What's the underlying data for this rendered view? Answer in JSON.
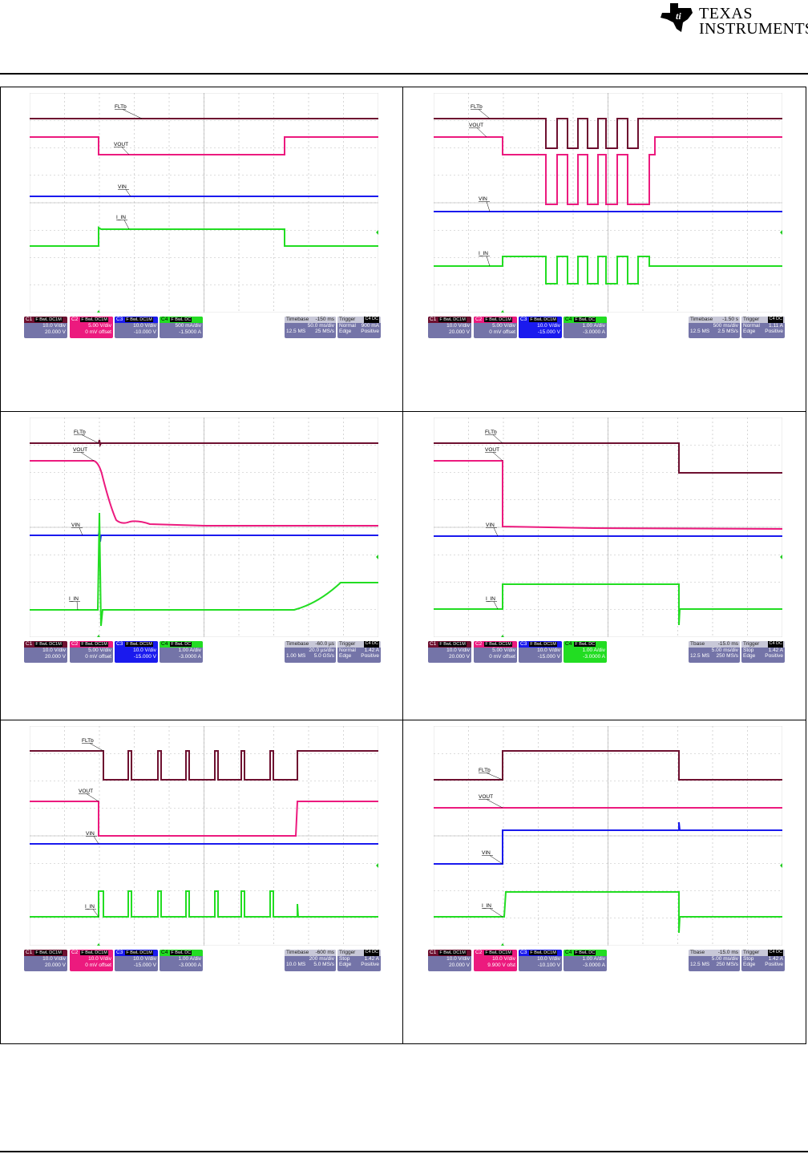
{
  "header": {
    "brand_line1": "TEXAS",
    "brand_line2": "INSTRUMENTS"
  },
  "colors": {
    "c1": "#6e1030",
    "c2": "#ec1a7e",
    "c3": "#1a1aee",
    "c4": "#22dd22",
    "box": "#7474a8"
  },
  "panels": [
    {
      "labels": {
        "fltb": "FLTb",
        "vout": "VOUT",
        "vin": "VIN",
        "iin": "I_IN"
      },
      "channels": [
        {
          "name": "C1",
          "flags": "F BwL DC1M",
          "vdiv": "10.0 V/div",
          "offset": "20.000 V",
          "selected": false
        },
        {
          "name": "C2",
          "flags": "F BwL DC1M",
          "vdiv": "5.00 V/div",
          "offset": "0 mV offset",
          "selected": true
        },
        {
          "name": "C3",
          "flags": "F BwL DC1M",
          "vdiv": "10.0 V/div",
          "offset": "-10.000 V",
          "selected": false
        },
        {
          "name": "C4",
          "flags": "F BwL DC",
          "vdiv": "500 mA/div",
          "offset": "-1.5000 A",
          "selected": false
        }
      ],
      "timebase": {
        "label": "Timebase",
        "delay": "-150 ms",
        "div": "50.0 ms/div",
        "samples": "12.5 MS",
        "rate": "25 MS/s"
      },
      "trigger": {
        "label": "Trigger",
        "src": "C4 DC",
        "mode": "Normal",
        "level": "900 mA",
        "type": "Edge",
        "slope": "Positive"
      }
    },
    {
      "labels": {
        "fltb": "FLTb",
        "vout": "VOUT",
        "vin": "VIN",
        "iin": "I_IN"
      },
      "channels": [
        {
          "name": "C1",
          "flags": "F BwL DC1M",
          "vdiv": "10.0 V/div",
          "offset": "20.000 V",
          "selected": false
        },
        {
          "name": "C2",
          "flags": "F BwL DC1M",
          "vdiv": "5.00 V/div",
          "offset": "0 mV offset",
          "selected": false
        },
        {
          "name": "C3",
          "flags": "F BwL DC1M",
          "vdiv": "10.0 V/div",
          "offset": "-15.000 V",
          "selected": true
        },
        {
          "name": "C4",
          "flags": "F BwL DC",
          "vdiv": "1.00 A/div",
          "offset": "-3.0000 A",
          "selected": false
        }
      ],
      "timebase": {
        "label": "Timebase",
        "delay": "-1.50 s",
        "div": "500 ms/div",
        "samples": "12.5 MS",
        "rate": "2.5 MS/s"
      },
      "trigger": {
        "label": "Trigger",
        "src": "C4 DC",
        "mode": "Normal",
        "level": "1.11 A",
        "type": "Edge",
        "slope": "Positive"
      }
    },
    {
      "labels": {
        "fltb": "FLTb",
        "vout": "VOUT",
        "vin": "VIN",
        "iin": "I_IN"
      },
      "channels": [
        {
          "name": "C1",
          "flags": "F BwL DC1M",
          "vdiv": "10.0 V/div",
          "offset": "20.000 V",
          "selected": false
        },
        {
          "name": "C2",
          "flags": "F BwL DC1M",
          "vdiv": "5.00 V/div",
          "offset": "0 mV offset",
          "selected": false
        },
        {
          "name": "C3",
          "flags": "F BwL DC1M",
          "vdiv": "10.0 V/div",
          "offset": "-15.000 V",
          "selected": true
        },
        {
          "name": "C4",
          "flags": "F BwL DC",
          "vdiv": "1.00 A/div",
          "offset": "-3.0000 A",
          "selected": false
        }
      ],
      "timebase": {
        "label": "Timebase",
        "delay": "-60.0 µs",
        "div": "20.0 µs/div",
        "samples": "1.00 MS",
        "rate": "5.0 GS/s"
      },
      "trigger": {
        "label": "Trigger",
        "src": "C4 DC",
        "mode": "Normal",
        "level": "1.42 A",
        "type": "Edge",
        "slope": "Positive"
      }
    },
    {
      "labels": {
        "fltb": "FLTb",
        "vout": "VOUT",
        "vin": "VIN",
        "iin": "I_IN"
      },
      "channels": [
        {
          "name": "C1",
          "flags": "F BwL DC1M",
          "vdiv": "10.0 V/div",
          "offset": "20.000 V",
          "selected": false
        },
        {
          "name": "C2",
          "flags": "F BwL DC1M",
          "vdiv": "5.00 V/div",
          "offset": "0 mV offset",
          "selected": false
        },
        {
          "name": "C3",
          "flags": "F BwL DC1M",
          "vdiv": "10.0 V/div",
          "offset": "-15.000 V",
          "selected": false
        },
        {
          "name": "C4",
          "flags": "F BwL DC",
          "vdiv": "1.00 A/div",
          "offset": "-3.0000 A",
          "selected": true
        }
      ],
      "timebase": {
        "label": "Tbase",
        "delay": "-15.0 ms",
        "div": "5.00 ms/div",
        "samples": "12.5 MS",
        "rate": "250 MS/s"
      },
      "trigger": {
        "label": "Trigger",
        "src": "C4 DC",
        "mode": "Stop",
        "level": "1.42 A",
        "type": "Edge",
        "slope": "Positive"
      }
    },
    {
      "labels": {
        "fltb": "FLTb",
        "vout": "VOUT",
        "vin": "VIN",
        "iin": "I_IN"
      },
      "channels": [
        {
          "name": "C1",
          "flags": "F BwL DC1M",
          "vdiv": "10.0 V/div",
          "offset": "20.000 V",
          "selected": false
        },
        {
          "name": "C2",
          "flags": "F BwL DC1M",
          "vdiv": "10.0 V/div",
          "offset": "0 mV offset",
          "selected": true
        },
        {
          "name": "C3",
          "flags": "F BwL DC1M",
          "vdiv": "10.0 V/div",
          "offset": "-15.000 V",
          "selected": false
        },
        {
          "name": "C4",
          "flags": "F BwL DC",
          "vdiv": "1.00 A/div",
          "offset": "-3.0000 A",
          "selected": false
        }
      ],
      "timebase": {
        "label": "Timebase",
        "delay": "-600 ms",
        "div": "200 ms/div",
        "samples": "10.0 MS",
        "rate": "5.0 MS/s"
      },
      "trigger": {
        "label": "Trigger",
        "src": "C4 DC",
        "mode": "Stop",
        "level": "1.42 A",
        "type": "Edge",
        "slope": "Positive"
      }
    },
    {
      "labels": {
        "fltb": "FLTb",
        "vout": "VOUT",
        "vin": "VIN",
        "iin": "I_IN"
      },
      "channels": [
        {
          "name": "C1",
          "flags": "F BwL DC1M",
          "vdiv": "10.0 V/div",
          "offset": "20.000 V",
          "selected": false
        },
        {
          "name": "C2",
          "flags": "F BwL DC1M",
          "vdiv": "10.0 V/div",
          "offset": "9.900 V ofst",
          "selected": true
        },
        {
          "name": "C3",
          "flags": "F BwL DC1M",
          "vdiv": "10.0 V/div",
          "offset": "-10.100 V",
          "selected": false
        },
        {
          "name": "C4",
          "flags": "F BwL DC",
          "vdiv": "1.00 A/div",
          "offset": "-3.0000 A",
          "selected": false
        }
      ],
      "timebase": {
        "label": "Tbase",
        "delay": "-15.0 ms",
        "div": "5.00 ms/div",
        "samples": "12.5 MS",
        "rate": "250 MS/s"
      },
      "trigger": {
        "label": "Trigger",
        "src": "C4 DC",
        "mode": "Stop",
        "level": "1.42 A",
        "type": "Edge",
        "slope": "Positive"
      }
    }
  ]
}
